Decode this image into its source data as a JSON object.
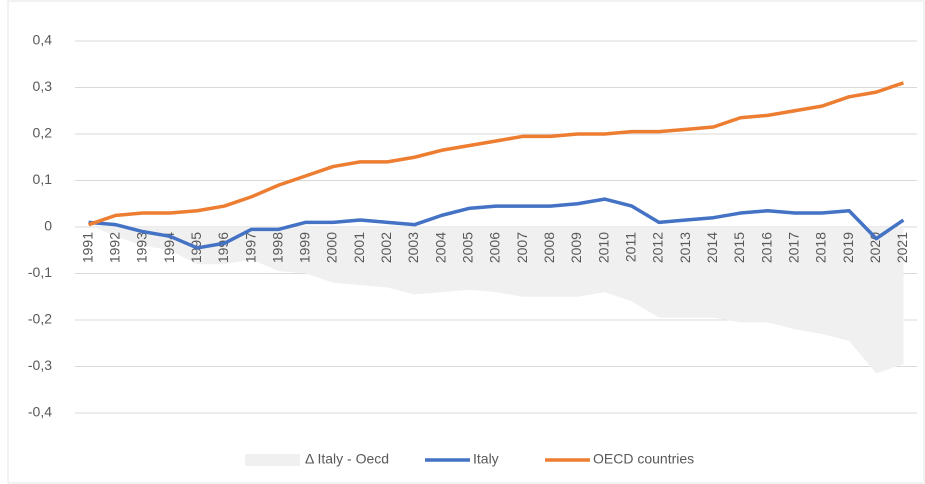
{
  "chart_data": {
    "type": "line",
    "categories": [
      "1991",
      "1992",
      "1993",
      "1994",
      "1995",
      "1996",
      "1997",
      "1998",
      "1999",
      "2000",
      "2001",
      "2002",
      "2003",
      "2004",
      "2005",
      "2006",
      "2007",
      "2008",
      "2009",
      "2010",
      "2011",
      "2012",
      "2013",
      "2014",
      "2015",
      "2016",
      "2017",
      "2018",
      "2019",
      "2020",
      "2021"
    ],
    "series": [
      {
        "name": "Δ Italy - Oecd",
        "type": "area",
        "color": "#f0f0f0",
        "values": [
          0.005,
          -0.02,
          -0.04,
          -0.05,
          -0.08,
          -0.08,
          -0.07,
          -0.095,
          -0.1,
          -0.12,
          -0.125,
          -0.13,
          -0.145,
          -0.14,
          -0.135,
          -0.14,
          -0.15,
          -0.15,
          -0.15,
          -0.14,
          -0.16,
          -0.195,
          -0.195,
          -0.195,
          -0.205,
          -0.205,
          -0.22,
          -0.23,
          -0.245,
          -0.315,
          -0.295
        ]
      },
      {
        "name": "Italy",
        "type": "line",
        "color": "#4472c4",
        "values": [
          0.01,
          0.005,
          -0.01,
          -0.02,
          -0.045,
          -0.035,
          -0.005,
          -0.005,
          0.01,
          0.01,
          0.015,
          0.01,
          0.005,
          0.025,
          0.04,
          0.045,
          0.045,
          0.045,
          0.05,
          0.06,
          0.045,
          0.01,
          0.015,
          0.02,
          0.03,
          0.035,
          0.03,
          0.03,
          0.035,
          -0.025,
          0.015
        ]
      },
      {
        "name": "OECD countries",
        "type": "line",
        "color": "#ed7d31",
        "values": [
          0.005,
          0.025,
          0.03,
          0.03,
          0.035,
          0.045,
          0.065,
          0.09,
          0.11,
          0.13,
          0.14,
          0.14,
          0.15,
          0.165,
          0.175,
          0.185,
          0.195,
          0.195,
          0.2,
          0.2,
          0.205,
          0.205,
          0.21,
          0.215,
          0.235,
          0.24,
          0.25,
          0.26,
          0.28,
          0.29,
          0.31
        ]
      }
    ],
    "ylim": [
      -0.4,
      0.4
    ],
    "yticks": [
      {
        "value": -0.4,
        "label": "-0,4"
      },
      {
        "value": -0.3,
        "label": "-0,3"
      },
      {
        "value": -0.2,
        "label": "-0,2"
      },
      {
        "value": -0.1,
        "label": "-0,1"
      },
      0,
      {
        "value": 0.1,
        "label": "0,1"
      },
      {
        "value": 0.2,
        "label": "0,2"
      },
      {
        "value": 0.3,
        "label": "0,3"
      },
      {
        "value": 0.4,
        "label": "0,4"
      }
    ],
    "grid": true,
    "legend": "bottom"
  }
}
